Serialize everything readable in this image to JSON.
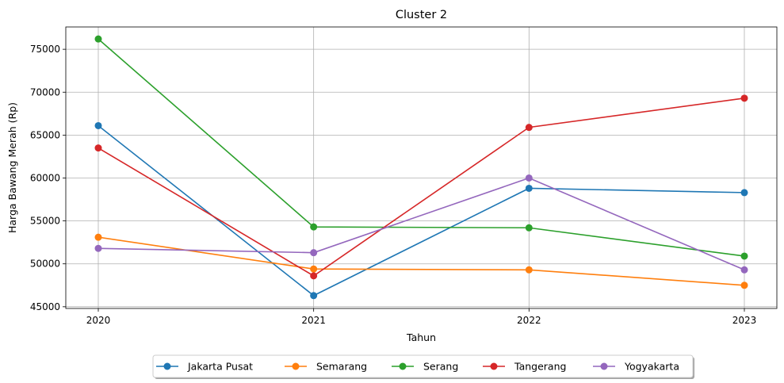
{
  "chart_data": {
    "type": "line",
    "title": "Cluster 2",
    "xlabel": "Tahun",
    "ylabel": "Harga Bawang Merah (Rp)",
    "x": [
      "2020",
      "2021",
      "2022",
      "2023"
    ],
    "ylim": [
      44800,
      77600
    ],
    "yticks": [
      "45000",
      "50000",
      "55000",
      "60000",
      "65000",
      "70000",
      "75000"
    ],
    "grid": true,
    "legend_placement": "bottom-center",
    "series": [
      {
        "name": "Jakarta Pusat",
        "color": "#1f77b4",
        "values": [
          66100,
          46300,
          58800,
          58300
        ]
      },
      {
        "name": "Semarang",
        "color": "#ff7f0e",
        "values": [
          53100,
          49400,
          49300,
          47500
        ]
      },
      {
        "name": "Serang",
        "color": "#2ca02c",
        "values": [
          76200,
          54300,
          54200,
          50900
        ]
      },
      {
        "name": "Tangerang",
        "color": "#d62728",
        "values": [
          63500,
          48600,
          65900,
          69300
        ]
      },
      {
        "name": "Yogyakarta",
        "color": "#9467bd",
        "values": [
          51800,
          51300,
          60000,
          49300
        ]
      }
    ]
  }
}
